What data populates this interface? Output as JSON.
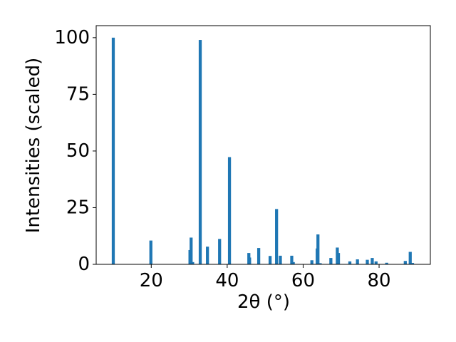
{
  "chart_data": {
    "type": "bar",
    "x_label": "2θ (°)",
    "y_label": "Intensities (scaled)",
    "color": "#1f77b4",
    "x": [
      10.0,
      19.9,
      30.2,
      30.5,
      30.9,
      32.9,
      34.8,
      38.0,
      40.6,
      45.7,
      45.9,
      48.3,
      51.3,
      53.0,
      54.0,
      57.0,
      57.4,
      62.3,
      63.7,
      63.9,
      64.5,
      67.3,
      69.0,
      69.3,
      72.3,
      74.3,
      76.9,
      78.2,
      79.2,
      82.0,
      86.9,
      88.2,
      88.8
    ],
    "values": [
      100,
      10.5,
      6.3,
      11.8,
      1.0,
      99,
      7.8,
      11.2,
      47.3,
      5.0,
      3.0,
      7.2,
      3.7,
      24.4,
      3.8,
      3.8,
      1.0,
      1.8,
      7.0,
      13.2,
      0.5,
      2.8,
      7.4,
      5.0,
      1.3,
      2.2,
      2.0,
      2.8,
      1.3,
      0.7,
      1.5,
      5.5,
      0.6
    ],
    "xlim": [
      5.5,
      93.5
    ],
    "ylim": [
      0,
      105.3
    ],
    "xticks": [
      20,
      40,
      60,
      80
    ],
    "yticks": [
      0,
      25,
      50,
      75,
      100
    ]
  }
}
